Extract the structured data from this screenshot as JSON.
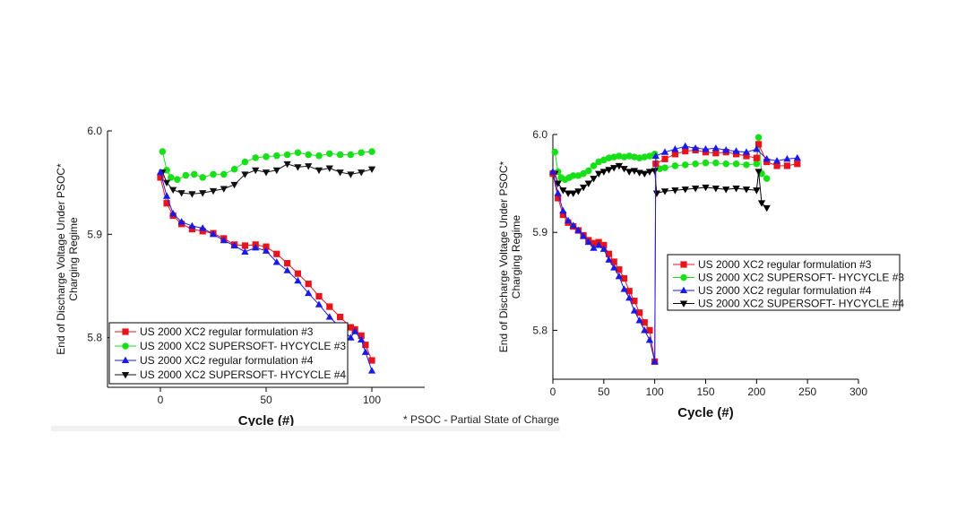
{
  "footnote": "* PSOC - Partial State of Charge",
  "colors": {
    "series1": "#e8141c",
    "series2": "#18e018",
    "series3": "#1a1ae6",
    "series4": "#111111",
    "series4_right": "#000000"
  },
  "chart_data": [
    {
      "type": "scatter",
      "title": "",
      "xlabel": "Cycle (#)",
      "ylabel_lines": [
        "End of Discharge Voltage Under PSOC*",
        "Charging Regime"
      ],
      "xlim": [
        -25,
        125
      ],
      "ylim": [
        5.752,
        6.0
      ],
      "x_ticks": [
        0,
        50,
        100
      ],
      "y_ticks": [
        5.8,
        5.9,
        6.0
      ],
      "y_tick_labels": [
        "5.8",
        "5.9",
        "6.0"
      ],
      "legend_position": "bottom-left",
      "series": [
        {
          "name": "US 2000 XC2 regular formulation  #3",
          "marker": "square",
          "color": "#e8141c",
          "x": [
            0,
            3,
            6,
            10,
            15,
            20,
            25,
            30,
            35,
            40,
            45,
            50,
            55,
            60,
            65,
            70,
            75,
            80,
            85,
            90,
            92,
            95,
            97,
            100
          ],
          "y": [
            5.955,
            5.93,
            5.918,
            5.91,
            5.905,
            5.903,
            5.901,
            5.896,
            5.89,
            5.889,
            5.89,
            5.888,
            5.881,
            5.872,
            5.862,
            5.852,
            5.84,
            5.83,
            5.82,
            5.81,
            5.808,
            5.802,
            5.793,
            5.778
          ]
        },
        {
          "name": "US 2000 XC2 SUPERSOFT- HYCYCLE #3",
          "marker": "circle",
          "color": "#18e018",
          "x": [
            1,
            3,
            5,
            8,
            12,
            16,
            20,
            25,
            30,
            35,
            40,
            45,
            50,
            55,
            60,
            65,
            70,
            75,
            80,
            85,
            90,
            95,
            100
          ],
          "y": [
            5.98,
            5.962,
            5.955,
            5.953,
            5.957,
            5.958,
            5.955,
            5.958,
            5.958,
            5.963,
            5.97,
            5.974,
            5.975,
            5.976,
            5.977,
            5.979,
            5.977,
            5.976,
            5.978,
            5.977,
            5.977,
            5.979,
            5.98
          ]
        },
        {
          "name": "US 2000 XC2 regular formulation #4",
          "marker": "triangle-up",
          "color": "#1a1ae6",
          "x": [
            0,
            3,
            6,
            10,
            15,
            20,
            25,
            30,
            35,
            40,
            45,
            50,
            55,
            60,
            65,
            70,
            75,
            80,
            85,
            90,
            92,
            95,
            97,
            100
          ],
          "y": [
            5.96,
            5.937,
            5.92,
            5.912,
            5.908,
            5.906,
            5.9,
            5.894,
            5.889,
            5.883,
            5.887,
            5.884,
            5.873,
            5.865,
            5.855,
            5.843,
            5.832,
            5.82,
            5.81,
            5.8,
            5.806,
            5.798,
            5.786,
            5.768
          ]
        },
        {
          "name": "US 2000 XC2 SUPERSOFT- HYCYCLE #4",
          "marker": "triangle-down",
          "color": "#111111",
          "x": [
            1,
            3,
            6,
            10,
            15,
            20,
            25,
            30,
            35,
            40,
            45,
            50,
            55,
            60,
            65,
            70,
            75,
            80,
            85,
            90,
            95,
            100
          ],
          "y": [
            5.96,
            5.95,
            5.943,
            5.94,
            5.939,
            5.94,
            5.942,
            5.944,
            5.948,
            5.958,
            5.962,
            5.96,
            5.962,
            5.968,
            5.965,
            5.966,
            5.962,
            5.964,
            5.96,
            5.958,
            5.96,
            5.963
          ]
        }
      ]
    },
    {
      "type": "scatter",
      "title": "",
      "xlabel": "Cycle (#)",
      "ylabel_lines": [
        "End of Discharge Voltage Under PSOC*",
        "Charging Regime"
      ],
      "xlim": [
        0,
        300
      ],
      "ylim": [
        5.75,
        6.0
      ],
      "x_ticks": [
        0,
        50,
        100,
        150,
        200,
        250,
        300
      ],
      "y_ticks": [
        5.8,
        5.9,
        6.0
      ],
      "y_tick_labels": [
        "5.8",
        "5.9",
        "6.0"
      ],
      "legend_position": "center-right",
      "series": [
        {
          "name": "US 2000 XC2 regular formulation  #3",
          "marker": "square",
          "color": "#e8141c",
          "x": [
            0,
            5,
            10,
            15,
            20,
            25,
            30,
            35,
            40,
            45,
            50,
            55,
            60,
            65,
            70,
            75,
            80,
            85,
            90,
            95,
            100,
            101,
            110,
            120,
            130,
            140,
            150,
            160,
            170,
            180,
            190,
            200,
            202,
            210,
            220,
            230,
            240
          ],
          "y": [
            5.96,
            5.935,
            5.918,
            5.91,
            5.906,
            5.902,
            5.897,
            5.892,
            5.889,
            5.89,
            5.887,
            5.878,
            5.87,
            5.862,
            5.853,
            5.84,
            5.83,
            5.818,
            5.808,
            5.8,
            5.768,
            5.97,
            5.975,
            5.98,
            5.983,
            5.984,
            5.982,
            5.981,
            5.982,
            5.98,
            5.978,
            5.976,
            5.99,
            5.972,
            5.968,
            5.968,
            5.97
          ]
        },
        {
          "name": "US 2000 XC2 SUPERSOFT- HYCYCLE #3",
          "marker": "circle",
          "color": "#18e018",
          "x": [
            2,
            5,
            8,
            12,
            16,
            20,
            25,
            30,
            35,
            40,
            45,
            50,
            55,
            60,
            65,
            70,
            75,
            80,
            85,
            90,
            95,
            100,
            105,
            110,
            120,
            130,
            140,
            150,
            160,
            170,
            180,
            190,
            200,
            202,
            205,
            210
          ],
          "y": [
            5.982,
            5.962,
            5.956,
            5.954,
            5.956,
            5.958,
            5.958,
            5.96,
            5.963,
            5.968,
            5.972,
            5.974,
            5.976,
            5.977,
            5.978,
            5.977,
            5.978,
            5.977,
            5.976,
            5.977,
            5.978,
            5.98,
            5.965,
            5.966,
            5.968,
            5.969,
            5.97,
            5.971,
            5.971,
            5.97,
            5.97,
            5.969,
            5.97,
            5.997,
            5.96,
            5.955
          ]
        },
        {
          "name": "US 2000 XC2 regular formulation #4",
          "marker": "triangle-up",
          "color": "#1a1ae6",
          "x": [
            0,
            5,
            10,
            15,
            20,
            25,
            30,
            35,
            40,
            45,
            50,
            55,
            60,
            65,
            70,
            75,
            80,
            85,
            90,
            95,
            100,
            101,
            110,
            120,
            130,
            140,
            150,
            160,
            170,
            180,
            190,
            200,
            210,
            220,
            230,
            240
          ],
          "y": [
            5.962,
            5.94,
            5.922,
            5.912,
            5.907,
            5.902,
            5.896,
            5.89,
            5.884,
            5.887,
            5.883,
            5.872,
            5.864,
            5.855,
            5.842,
            5.833,
            5.82,
            5.81,
            5.8,
            5.79,
            5.768,
            5.978,
            5.982,
            5.985,
            5.988,
            5.986,
            5.985,
            5.986,
            5.984,
            5.983,
            5.982,
            5.985,
            5.975,
            5.973,
            5.975,
            5.976
          ]
        },
        {
          "name": "US 2000 XC2 SUPERSOFT- HYCYCLE #4",
          "marker": "triangle-down",
          "color": "#000000",
          "x": [
            2,
            5,
            10,
            15,
            20,
            25,
            30,
            35,
            40,
            45,
            50,
            55,
            60,
            65,
            70,
            75,
            80,
            85,
            90,
            95,
            100,
            102,
            110,
            120,
            130,
            140,
            150,
            160,
            170,
            180,
            190,
            200,
            202,
            205,
            210
          ],
          "y": [
            5.96,
            5.95,
            5.943,
            5.94,
            5.94,
            5.942,
            5.946,
            5.95,
            5.955,
            5.96,
            5.962,
            5.964,
            5.966,
            5.968,
            5.965,
            5.962,
            5.963,
            5.961,
            5.96,
            5.962,
            5.963,
            5.94,
            5.942,
            5.943,
            5.944,
            5.945,
            5.946,
            5.945,
            5.944,
            5.945,
            5.944,
            5.943,
            5.962,
            5.93,
            5.925
          ]
        }
      ]
    }
  ]
}
